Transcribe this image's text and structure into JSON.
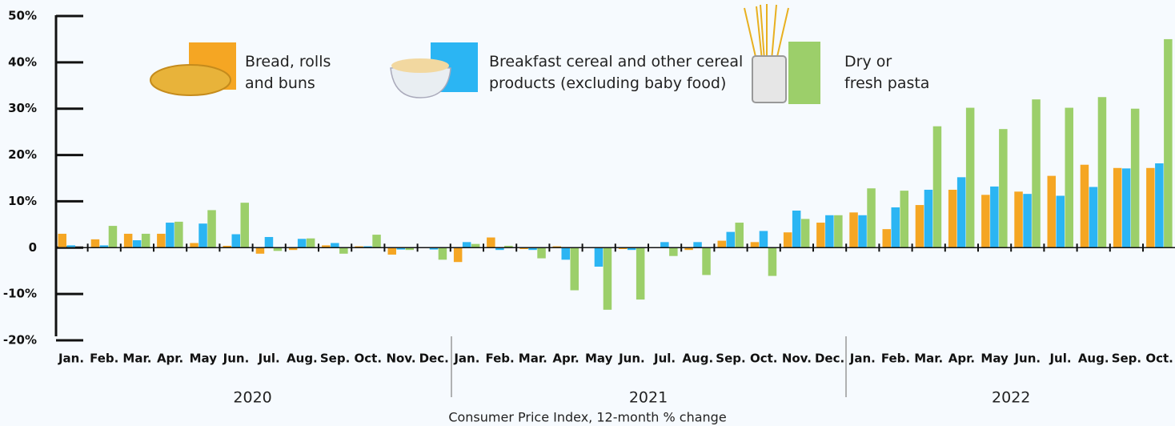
{
  "chart_data": {
    "type": "bar",
    "x_label": "Consumer Price Index, 12-month % change",
    "years": [
      "2020",
      "2021",
      "2022"
    ],
    "categories": [
      "Jan.",
      "Feb.",
      "Mar.",
      "Apr.",
      "May",
      "Jun.",
      "Jul.",
      "Aug.",
      "Sep.",
      "Oct.",
      "Nov.",
      "Dec.",
      "Jan.",
      "Feb.",
      "Mar.",
      "Apr.",
      "May",
      "Jun.",
      "Jul.",
      "Aug.",
      "Sep.",
      "Oct.",
      "Nov.",
      "Dec.",
      "Jan.",
      "Feb.",
      "Mar.",
      "Apr.",
      "May",
      "Jun.",
      "Jul.",
      "Aug.",
      "Sep.",
      "Oct."
    ],
    "series": [
      {
        "name": "Bread, rolls\n and buns",
        "color": "#f5a623",
        "values": [
          3,
          1.8,
          3,
          3,
          1,
          0.4,
          -1.3,
          -0.5,
          0.5,
          0.3,
          -1.5,
          0,
          -3.1,
          2.2,
          -0.3,
          0.3,
          0,
          -0.3,
          0,
          -0.5,
          1.5,
          1.2,
          3.3,
          5.4,
          7.6,
          4.0,
          9.2,
          12.5,
          11.4,
          12.1,
          15.5,
          17.9,
          17.2,
          17.2
        ]
      },
      {
        "name": "Breakfast cereal and other cereal\nproducts (excluding baby food)",
        "color": "#2bb5f3",
        "values": [
          0.5,
          0.5,
          1.6,
          5.4,
          5.2,
          2.9,
          2.3,
          1.9,
          1.0,
          0.3,
          -0.4,
          -0.4,
          1.2,
          -0.5,
          -0.5,
          -2.6,
          -4.1,
          -0.5,
          1.2,
          1.2,
          3.4,
          3.6,
          8.0,
          7.0,
          7.0,
          8.7,
          12.5,
          15.2,
          13.2,
          11.6,
          11.2,
          13.1,
          17.1,
          18.2
        ]
      },
      {
        "name": "Dry or\nfresh pasta",
        "color": "#9ccf6a",
        "values": [
          0,
          4.7,
          3,
          5.6,
          8.1,
          9.7,
          -0.7,
          2.0,
          -1.3,
          2.8,
          -0.5,
          -2.6,
          0.8,
          0.4,
          -2.3,
          -9.2,
          -13.4,
          -11.2,
          -1.8,
          -5.9,
          5.4,
          -6.1,
          6.2,
          7.0,
          12.8,
          12.3,
          26.2,
          30.2,
          25.6,
          32,
          30.2,
          32.5,
          30,
          45
        ]
      }
    ],
    "ylim": [
      -20,
      50
    ],
    "yticks": [
      {
        "value": -20,
        "label": "-20%"
      },
      {
        "value": -10,
        "label": "-10%"
      },
      0,
      {
        "value": 10,
        "label": "10%"
      },
      {
        "value": 20,
        "label": "20%"
      },
      {
        "value": 30,
        "label": "30%"
      },
      {
        "value": 40,
        "label": "40%"
      },
      {
        "value": 50,
        "label": "50%"
      }
    ],
    "legend": "top"
  }
}
